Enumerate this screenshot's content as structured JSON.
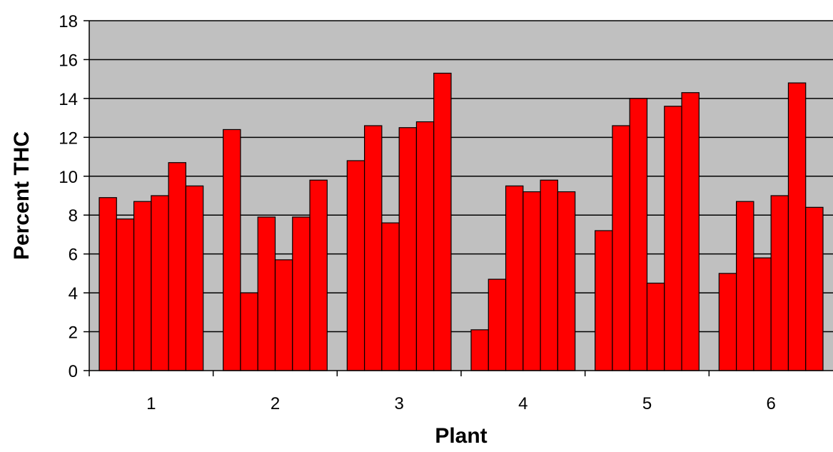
{
  "chart_data": {
    "type": "bar",
    "xlabel": "Plant",
    "ylabel": "Percent THC",
    "ylim": [
      0,
      18
    ],
    "yticks": [
      "0",
      "2",
      "4",
      "6",
      "8",
      "10",
      "12",
      "14",
      "16",
      "18"
    ],
    "categories": [
      "1",
      "2",
      "3",
      "4",
      "5",
      "6"
    ],
    "groups": [
      {
        "category": "1",
        "values": [
          8.9,
          7.8,
          8.7,
          9.0,
          10.7,
          9.5
        ]
      },
      {
        "category": "2",
        "values": [
          12.4,
          4.0,
          7.9,
          5.7,
          7.9,
          9.8
        ]
      },
      {
        "category": "3",
        "values": [
          10.8,
          12.6,
          7.6,
          12.5,
          12.8,
          15.3
        ]
      },
      {
        "category": "4",
        "values": [
          2.1,
          4.7,
          9.5,
          9.2,
          9.8,
          9.2
        ]
      },
      {
        "category": "5",
        "values": [
          7.2,
          12.6,
          14.0,
          4.5,
          13.6,
          14.3
        ]
      },
      {
        "category": "6",
        "values": [
          5.0,
          8.7,
          5.8,
          9.0,
          14.8,
          8.4
        ]
      }
    ],
    "grid": true,
    "legend": "none",
    "colors": {
      "bar": "#ff0000",
      "bar_outline": "#000000",
      "plot_background": "#c0c0c0",
      "gridline": "#000000"
    }
  }
}
